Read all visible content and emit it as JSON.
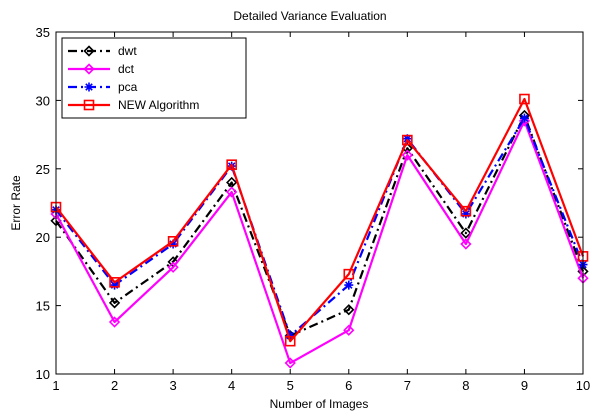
{
  "chart_data": {
    "type": "line",
    "title": "Detailed Variance Evaluation",
    "xlabel": "Number of Images",
    "ylabel": "Error Rate",
    "x": [
      1,
      2,
      3,
      4,
      5,
      6,
      7,
      8,
      9,
      10
    ],
    "xlim": [
      1,
      10
    ],
    "ylim": [
      10,
      35
    ],
    "xticks": [
      "1",
      "2",
      "3",
      "4",
      "5",
      "6",
      "7",
      "8",
      "9",
      "10"
    ],
    "yticks": [
      "10",
      "15",
      "20",
      "25",
      "30",
      "35"
    ],
    "grid": false,
    "legend_position": "top-left",
    "series": [
      {
        "name": "dwt",
        "color": "#000000",
        "dash": "dash-dot",
        "marker": "diamond",
        "values": [
          21.2,
          15.2,
          18.2,
          24.0,
          12.8,
          14.7,
          26.5,
          20.3,
          28.9,
          17.5
        ]
      },
      {
        "name": "dct",
        "color": "#ff00ff",
        "dash": "solid",
        "marker": "diamond",
        "values": [
          21.7,
          13.8,
          17.8,
          23.3,
          10.8,
          13.2,
          26.0,
          19.5,
          28.5,
          17.0
        ]
      },
      {
        "name": "pca",
        "color": "#0000ff",
        "dash": "dash-dot",
        "marker": "star",
        "values": [
          22.0,
          16.5,
          19.5,
          25.2,
          12.8,
          16.5,
          27.2,
          21.7,
          28.7,
          18.0
        ]
      },
      {
        "name": "NEW Algorithm",
        "color": "#ff0000",
        "dash": "solid",
        "marker": "square",
        "values": [
          22.2,
          16.7,
          19.7,
          25.3,
          12.4,
          17.3,
          27.1,
          21.9,
          30.1,
          18.6
        ]
      }
    ]
  }
}
